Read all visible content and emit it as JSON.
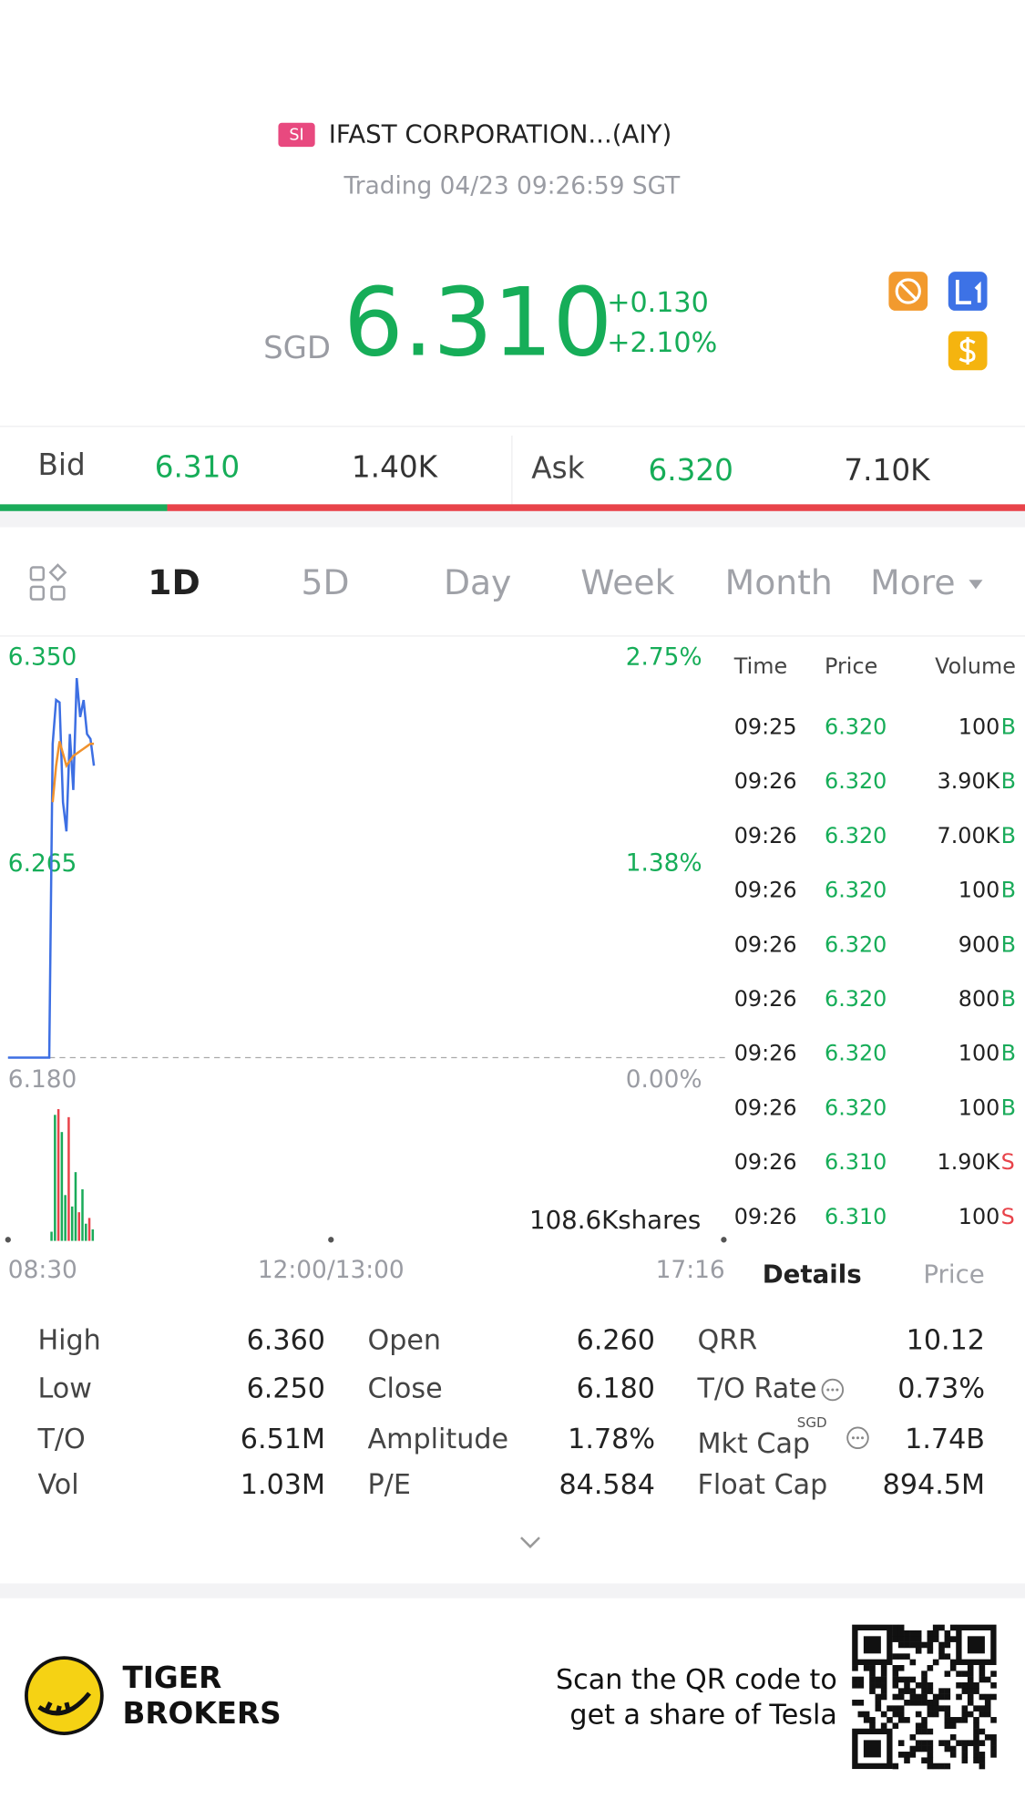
{
  "header": {
    "badge": "SI",
    "name": "IFAST CORPORATION...(AIY)",
    "status": "Trading 04/23 09:26:59 SGT"
  },
  "quote": {
    "currency": "SGD",
    "price": "6.310",
    "change": "+0.130",
    "change_pct": "+2.10%"
  },
  "bid_ask": {
    "bid_label": "Bid",
    "bid_price": "6.310",
    "bid_size": "1.40K",
    "ask_label": "Ask",
    "ask_price": "6.320",
    "ask_size": "7.10K"
  },
  "tabs": [
    "1D",
    "5D",
    "Day",
    "Week",
    "Month",
    "More"
  ],
  "chart_data": {
    "type": "line",
    "ylim": [
      6.18,
      6.35
    ],
    "yticks": [
      {
        "value": 6.35,
        "label": "6.350"
      },
      {
        "value": 6.265,
        "label": "6.265"
      },
      {
        "value": 6.18,
        "label": "6.180"
      }
    ],
    "y2lim": [
      0,
      2.75
    ],
    "y2ticks": [
      {
        "value": 2.75,
        "label": "2.75%"
      },
      {
        "value": 1.38,
        "label": "1.38%"
      },
      {
        "value": 0,
        "label": "0.00%"
      }
    ],
    "x_labels": [
      "08:30",
      "12:00/13:00",
      "17:16"
    ],
    "series": [
      {
        "color": "#3d6fe3",
        "values": [
          6.18,
          6.18,
          6.18,
          6.18,
          6.18,
          6.18,
          6.18,
          6.18,
          6.18,
          6.18,
          6.18,
          6.18,
          6.18,
          6.309,
          6.327,
          6.326,
          6.285,
          6.273,
          6.313,
          6.29,
          6.336,
          6.32,
          6.327,
          6.313,
          6.311,
          6.3
        ]
      },
      {
        "color": "#f0922e",
        "values": [
          null,
          null,
          null,
          null,
          null,
          null,
          null,
          null,
          null,
          null,
          null,
          null,
          null,
          6.285,
          6.3,
          6.31,
          6.305,
          6.3,
          6.302,
          6.304,
          6.305,
          6.306,
          6.307,
          6.308,
          6.309,
          6.309
        ]
      }
    ],
    "volume": {
      "ylim": [
        0,
        115
      ],
      "values": [
        8,
        110,
        115,
        95,
        40,
        108,
        30,
        60,
        25,
        45,
        15,
        20,
        10
      ],
      "colors": [
        "#1aab5a",
        "#1aab5a",
        "#e8434a",
        "#1aab5a",
        "#1aab5a",
        "#e8434a",
        "#1aab5a",
        "#1aab5a",
        "#e8434a",
        "#1aab5a",
        "#1aab5a",
        "#e8434a",
        "#1aab5a"
      ]
    },
    "volume_label": "108.6Kshares"
  },
  "trades": {
    "columns": [
      "Time",
      "Price",
      "Volume"
    ],
    "rows": [
      [
        "09:25",
        "6.320",
        "100",
        "B"
      ],
      [
        "09:26",
        "6.320",
        "3.90K",
        "B"
      ],
      [
        "09:26",
        "6.320",
        "7.00K",
        "B"
      ],
      [
        "09:26",
        "6.320",
        "100",
        "B"
      ],
      [
        "09:26",
        "6.320",
        "900",
        "B"
      ],
      [
        "09:26",
        "6.320",
        "800",
        "B"
      ],
      [
        "09:26",
        "6.320",
        "100",
        "B"
      ],
      [
        "09:26",
        "6.320",
        "100",
        "B"
      ],
      [
        "09:26",
        "6.310",
        "1.90K",
        "S"
      ],
      [
        "09:26",
        "6.310",
        "100",
        "S"
      ]
    ],
    "tabs": [
      "Details",
      "Price"
    ]
  },
  "stats": {
    "rows": [
      [
        "High",
        "6.360",
        "Open",
        "6.260",
        "QRR",
        "10.12"
      ],
      [
        "Low",
        "6.250",
        "Close",
        "6.180",
        "T/O Rate",
        "0.73%"
      ],
      [
        "T/O",
        "6.51M",
        "Amplitude",
        "1.78%",
        "Mkt Cap",
        "1.74B"
      ],
      [
        "Vol",
        "1.03M",
        "P/E",
        "84.584",
        "Float Cap",
        "894.5M"
      ]
    ],
    "mkt_cap_unit": "SGD"
  },
  "footer": {
    "brand": [
      "TIGER",
      "BROKERS"
    ],
    "promo": [
      "Scan the QR code to",
      "get a share of Tesla"
    ]
  }
}
